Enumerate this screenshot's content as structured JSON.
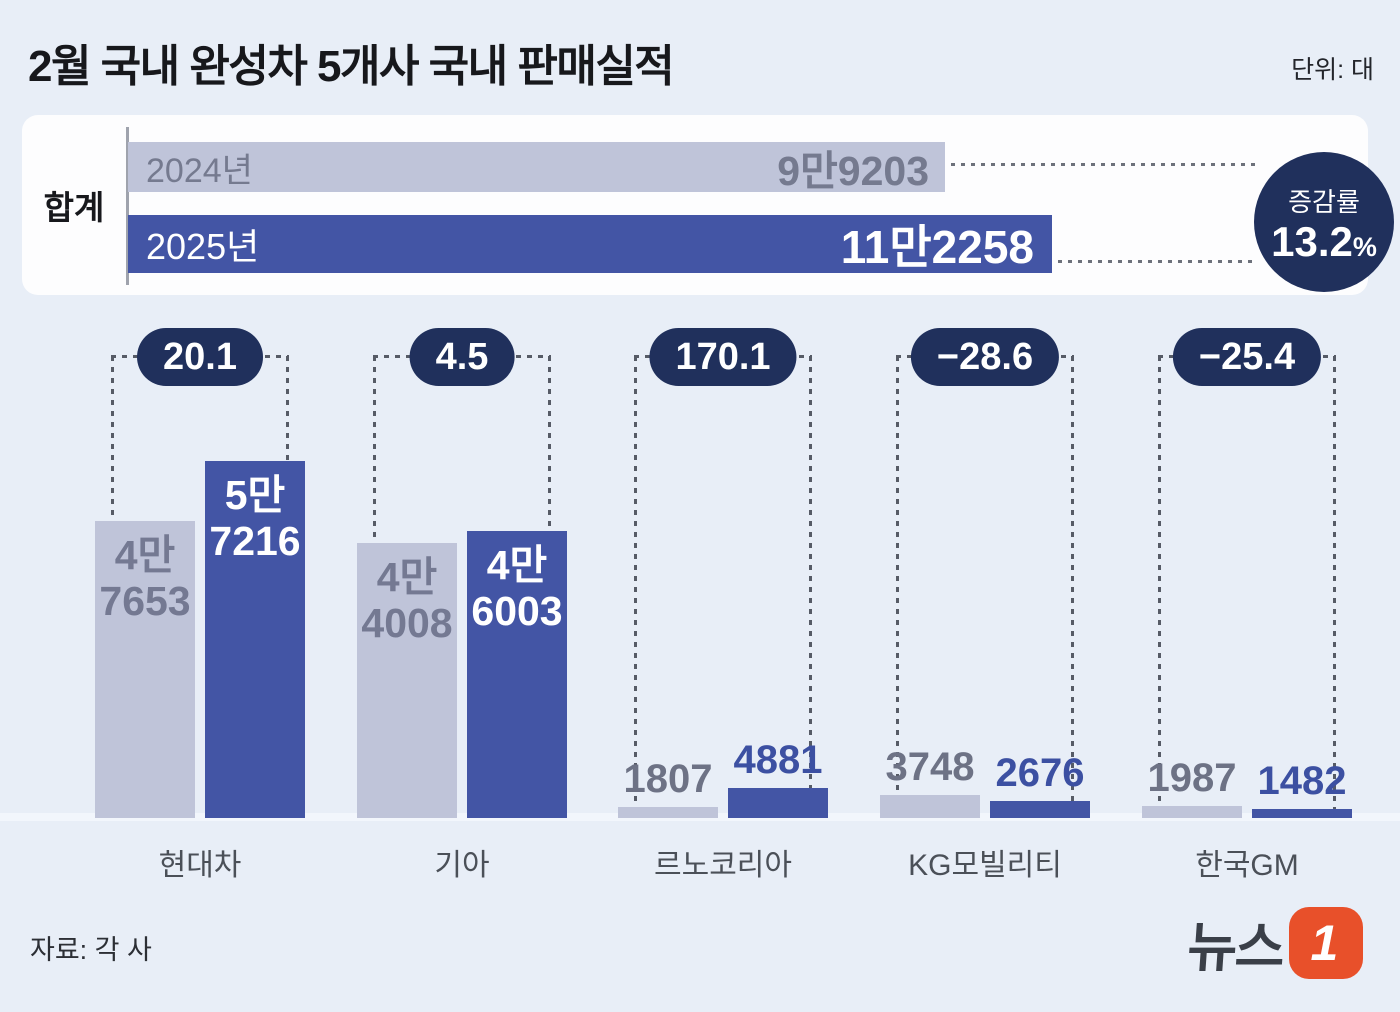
{
  "header": {
    "title": "2월 국내 완성차 5개사 국내 판매실적",
    "unit_label": "단위: 대"
  },
  "summary": {
    "row_label": "합계",
    "bars": [
      {
        "year": "2024년",
        "value": 99203,
        "value_label": "9만9203"
      },
      {
        "year": "2025년",
        "value": 112258,
        "value_label": "11만2258"
      }
    ],
    "change_label": "증감률",
    "change_value": "13.2",
    "percent_sign": "%"
  },
  "companies": [
    {
      "name": "현대차",
      "change": "20.1",
      "y2024": 47653,
      "y2025": 57216,
      "label2024": [
        "4만",
        "7653"
      ],
      "label2025": [
        "5만",
        "7216"
      ]
    },
    {
      "name": "기아",
      "change": "4.5",
      "y2024": 44008,
      "y2025": 46003,
      "label2024": [
        "4만",
        "4008"
      ],
      "label2025": [
        "4만",
        "6003"
      ]
    },
    {
      "name": "르노코리아",
      "change": "170.1",
      "y2024": 1807,
      "y2025": 4881,
      "label2024": [
        "1807"
      ],
      "label2025": [
        "4881"
      ]
    },
    {
      "name": "KG모빌리티",
      "change": "−28.6",
      "y2024": 3748,
      "y2025": 2676,
      "label2024": [
        "3748"
      ],
      "label2025": [
        "2676"
      ]
    },
    {
      "name": "한국GM",
      "change": "−25.4",
      "y2024": 1987,
      "y2025": 1482,
      "label2024": [
        "1987"
      ],
      "label2025": [
        "1482"
      ]
    }
  ],
  "footer": {
    "source": "자료: 각 사",
    "logo_word": "뉴스",
    "logo_badge": "1"
  },
  "colors": {
    "background": "#e8eef7",
    "bar_2024": "#bfc4d9",
    "bar_2025": "#4355a5",
    "badge_navy": "#20305c",
    "logo_orange": "#e8502a"
  },
  "chart_data": {
    "type": "bar",
    "title": "2월 국내 완성차 5개사 국내 판매실적",
    "unit": "대",
    "categories": [
      "현대차",
      "기아",
      "르노코리아",
      "KG모빌리티",
      "한국GM"
    ],
    "series": [
      {
        "name": "2024년",
        "values": [
          47653,
          44008,
          1807,
          3748,
          1987
        ]
      },
      {
        "name": "2025년",
        "values": [
          57216,
          46003,
          4881,
          2676,
          1482
        ]
      }
    ],
    "change_pct": [
      20.1,
      4.5,
      170.1,
      -28.6,
      -25.4
    ],
    "total": {
      "y2024": 99203,
      "y2025": 112258,
      "change_pct": 13.2
    },
    "ylim": [
      0,
      57216
    ],
    "grid": false,
    "legend_position": "inside-total-bars"
  }
}
